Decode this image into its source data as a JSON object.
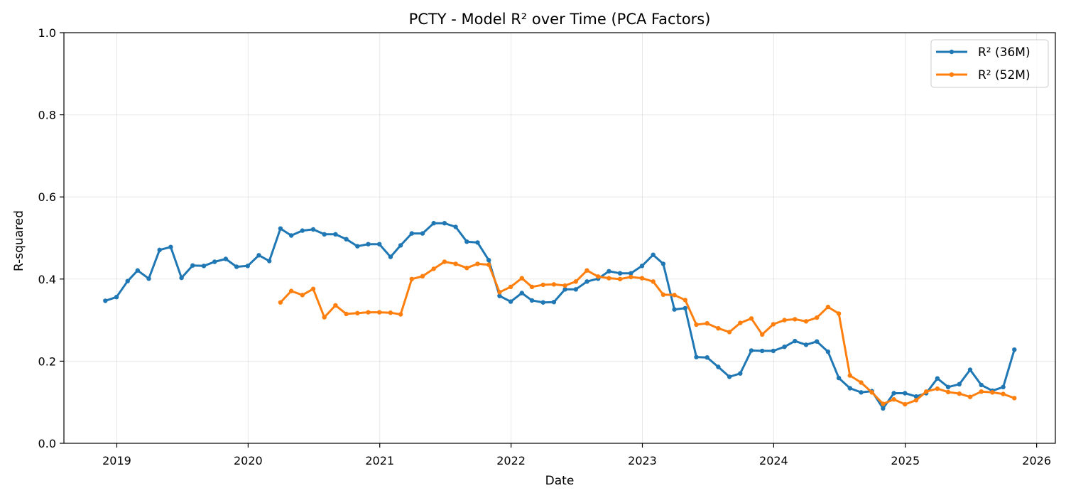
{
  "chart_data": {
    "type": "line",
    "title": "PCTY - Model R² over Time (PCA Factors)",
    "xlabel": "Date",
    "ylabel": "R-squared",
    "ylim": [
      0,
      1.0
    ],
    "xlim": [
      "2018-08-07",
      "2026-02-22"
    ],
    "y_ticks": [
      "0.0",
      "0.2",
      "0.4",
      "0.6",
      "0.8",
      "1.0"
    ],
    "x_ticks": [
      "2019",
      "2020",
      "2021",
      "2022",
      "2023",
      "2024",
      "2025",
      "2026"
    ],
    "grid": true,
    "legend_position": "top-right",
    "series": [
      {
        "name": "R² (36M)",
        "color": "#1f77b4",
        "x": [
          "2018-11-30",
          "2018-12-31",
          "2019-01-31",
          "2019-02-28",
          "2019-03-31",
          "2019-04-30",
          "2019-05-31",
          "2019-06-30",
          "2019-07-31",
          "2019-08-31",
          "2019-09-30",
          "2019-10-31",
          "2019-11-30",
          "2019-12-31",
          "2020-01-31",
          "2020-02-29",
          "2020-03-31",
          "2020-04-30",
          "2020-05-31",
          "2020-06-30",
          "2020-07-31",
          "2020-08-31",
          "2020-09-30",
          "2020-10-31",
          "2020-11-30",
          "2020-12-31",
          "2021-01-31",
          "2021-02-28",
          "2021-03-31",
          "2021-04-30",
          "2021-05-31",
          "2021-06-30",
          "2021-07-31",
          "2021-08-31",
          "2021-09-30",
          "2021-10-31",
          "2021-11-30",
          "2021-12-31",
          "2022-01-31",
          "2022-02-28",
          "2022-03-31",
          "2022-04-30",
          "2022-05-31",
          "2022-06-30",
          "2022-07-31",
          "2022-08-31",
          "2022-09-30",
          "2022-10-31",
          "2022-11-30",
          "2022-12-31",
          "2023-01-31",
          "2023-02-28",
          "2023-03-31",
          "2023-04-30",
          "2023-05-31",
          "2023-06-30",
          "2023-07-31",
          "2023-08-31",
          "2023-09-30",
          "2023-10-31",
          "2023-11-30",
          "2023-12-31",
          "2024-01-31",
          "2024-02-29",
          "2024-03-31",
          "2024-04-30",
          "2024-05-31",
          "2024-06-30",
          "2024-07-31",
          "2024-08-31",
          "2024-09-30",
          "2024-10-31",
          "2024-11-30",
          "2024-12-31",
          "2025-01-31",
          "2025-02-28",
          "2025-03-31",
          "2025-04-30",
          "2025-05-31",
          "2025-06-30",
          "2025-07-31",
          "2025-08-31",
          "2025-09-30",
          "2025-10-31"
        ],
        "values": [
          0.347,
          0.356,
          0.395,
          0.421,
          0.401,
          0.471,
          0.478,
          0.403,
          0.433,
          0.432,
          0.442,
          0.449,
          0.43,
          0.432,
          0.458,
          0.444,
          0.523,
          0.506,
          0.518,
          0.521,
          0.509,
          0.509,
          0.497,
          0.48,
          0.485,
          0.485,
          0.454,
          0.482,
          0.511,
          0.511,
          0.536,
          0.536,
          0.527,
          0.491,
          0.489,
          0.446,
          0.359,
          0.345,
          0.366,
          0.348,
          0.343,
          0.344,
          0.375,
          0.375,
          0.394,
          0.401,
          0.419,
          0.414,
          0.414,
          0.432,
          0.459,
          0.437,
          0.326,
          0.329,
          0.21,
          0.209,
          0.186,
          0.162,
          0.17,
          0.226,
          0.225,
          0.225,
          0.235,
          0.249,
          0.24,
          0.248,
          0.223,
          0.159,
          0.134,
          0.124,
          0.127,
          0.085,
          0.122,
          0.122,
          0.114,
          0.122,
          0.158,
          0.137,
          0.144,
          0.179,
          0.142,
          0.128,
          0.137,
          0.228
        ]
      },
      {
        "name": "R² (52M)",
        "color": "#ff7f0e",
        "x": [
          "2020-03-31",
          "2020-04-30",
          "2020-05-31",
          "2020-06-30",
          "2020-07-31",
          "2020-08-31",
          "2020-09-30",
          "2020-10-31",
          "2020-11-30",
          "2020-12-31",
          "2021-01-31",
          "2021-02-28",
          "2021-03-31",
          "2021-04-30",
          "2021-05-31",
          "2021-06-30",
          "2021-07-31",
          "2021-08-31",
          "2021-09-30",
          "2021-10-31",
          "2021-11-30",
          "2021-12-31",
          "2022-01-31",
          "2022-02-28",
          "2022-03-31",
          "2022-04-30",
          "2022-05-31",
          "2022-06-30",
          "2022-07-31",
          "2022-08-31",
          "2022-09-30",
          "2022-10-31",
          "2022-11-30",
          "2022-12-31",
          "2023-01-31",
          "2023-02-28",
          "2023-03-31",
          "2023-04-30",
          "2023-05-31",
          "2023-06-30",
          "2023-07-31",
          "2023-08-31",
          "2023-09-30",
          "2023-10-31",
          "2023-11-30",
          "2023-12-31",
          "2024-01-31",
          "2024-02-29",
          "2024-03-31",
          "2024-04-30",
          "2024-05-31",
          "2024-06-30",
          "2024-07-31",
          "2024-08-31",
          "2024-09-30",
          "2024-10-31",
          "2024-11-30",
          "2024-12-31",
          "2025-01-31",
          "2025-02-28",
          "2025-03-31",
          "2025-04-30",
          "2025-05-31",
          "2025-06-30",
          "2025-07-31",
          "2025-08-31",
          "2025-09-30",
          "2025-10-31"
        ],
        "values": [
          0.343,
          0.371,
          0.361,
          0.376,
          0.307,
          0.336,
          0.315,
          0.317,
          0.319,
          0.319,
          0.318,
          0.314,
          0.4,
          0.407,
          0.425,
          0.442,
          0.437,
          0.427,
          0.437,
          0.435,
          0.368,
          0.381,
          0.402,
          0.381,
          0.386,
          0.387,
          0.384,
          0.394,
          0.421,
          0.406,
          0.402,
          0.4,
          0.405,
          0.402,
          0.394,
          0.362,
          0.361,
          0.349,
          0.289,
          0.292,
          0.28,
          0.271,
          0.293,
          0.304,
          0.265,
          0.29,
          0.3,
          0.302,
          0.297,
          0.306,
          0.332,
          0.316,
          0.165,
          0.148,
          0.124,
          0.096,
          0.107,
          0.095,
          0.105,
          0.126,
          0.133,
          0.125,
          0.121,
          0.113,
          0.126,
          0.124,
          0.12,
          0.11
        ]
      }
    ]
  }
}
